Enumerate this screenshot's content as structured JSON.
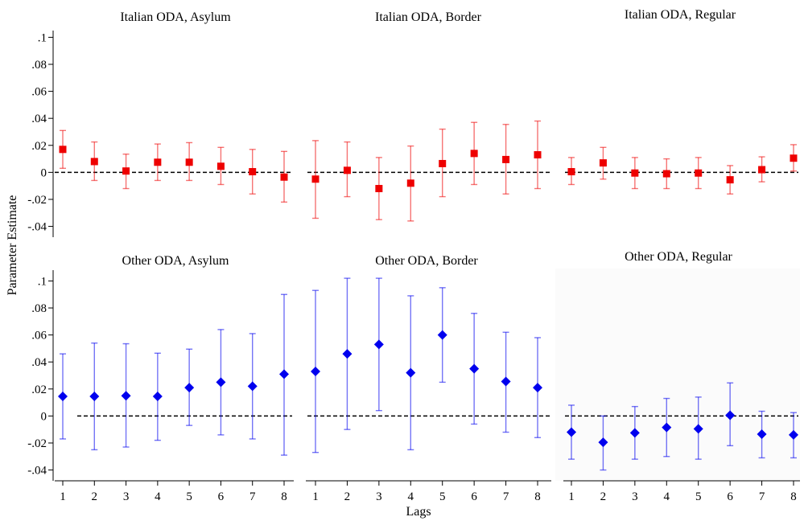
{
  "figure": {
    "ylabel": "Parameter Estimate",
    "xlabel": "Lags"
  },
  "chart_data": [
    {
      "type": "scatter",
      "title": "Italian ODA, Asylum",
      "color": "#ee0000",
      "marker": "square",
      "x": [
        1,
        2,
        3,
        4,
        5,
        6,
        7,
        8
      ],
      "y": [
        0.017,
        0.008,
        0.001,
        0.0075,
        0.0075,
        0.0045,
        0.0005,
        -0.0035
      ],
      "ci_low": [
        0.003,
        -0.006,
        -0.012,
        -0.006,
        -0.006,
        -0.009,
        -0.016,
        -0.022
      ],
      "ci_high": [
        0.031,
        0.0225,
        0.0135,
        0.021,
        0.022,
        0.0185,
        0.017,
        0.0155
      ],
      "ylim": [
        -0.048,
        0.105
      ],
      "yticks": [
        ".1",
        ".08",
        ".06",
        ".04",
        ".02",
        "0",
        "-.02",
        "-.04"
      ],
      "reference_line": 0
    },
    {
      "type": "scatter",
      "title": "Italian ODA, Border",
      "color": "#ee0000",
      "marker": "square",
      "x": [
        1,
        2,
        3,
        4,
        5,
        6,
        7,
        8
      ],
      "y": [
        -0.005,
        0.0015,
        -0.012,
        -0.008,
        0.0065,
        0.014,
        0.0095,
        0.013
      ],
      "ci_low": [
        -0.034,
        -0.018,
        -0.035,
        -0.036,
        -0.018,
        -0.009,
        -0.016,
        -0.012
      ],
      "ci_high": [
        0.0235,
        0.0225,
        0.011,
        0.0195,
        0.032,
        0.037,
        0.0355,
        0.038
      ],
      "ylim": [
        -0.048,
        0.105
      ],
      "reference_line": 0
    },
    {
      "type": "scatter",
      "title": "Italian ODA, Regular",
      "color": "#ee0000",
      "marker": "square",
      "x": [
        1,
        2,
        3,
        4,
        5,
        6,
        7,
        8
      ],
      "y": [
        0.0005,
        0.007,
        -0.0005,
        -0.001,
        -0.0005,
        -0.0055,
        0.002,
        0.0105
      ],
      "ci_low": [
        -0.009,
        -0.005,
        -0.012,
        -0.012,
        -0.012,
        -0.016,
        -0.007,
        0.001
      ],
      "ci_high": [
        0.011,
        0.0185,
        0.011,
        0.01,
        0.011,
        0.005,
        0.0115,
        0.0205
      ],
      "ylim": [
        -0.048,
        0.105
      ],
      "reference_line": 0
    },
    {
      "type": "scatter",
      "title": "Other ODA, Asylum",
      "color": "#0000ee",
      "marker": "diamond",
      "x": [
        1,
        2,
        3,
        4,
        5,
        6,
        7,
        8
      ],
      "y": [
        0.0145,
        0.0145,
        0.015,
        0.0145,
        0.021,
        0.025,
        0.022,
        0.031
      ],
      "ci_low": [
        -0.017,
        -0.025,
        -0.023,
        -0.018,
        -0.007,
        -0.014,
        -0.017,
        -0.029
      ],
      "ci_high": [
        0.046,
        0.054,
        0.0535,
        0.0465,
        0.0495,
        0.064,
        0.061,
        0.09
      ],
      "ylim": [
        -0.048,
        0.108
      ],
      "yticks": [
        ".1",
        ".08",
        ".06",
        ".04",
        ".02",
        "0",
        "-.02",
        "-.04"
      ],
      "xticks": [
        "1",
        "2",
        "3",
        "4",
        "5",
        "6",
        "7",
        "8"
      ],
      "reference_line": 0
    },
    {
      "type": "scatter",
      "title": "Other ODA, Border",
      "color": "#0000ee",
      "marker": "diamond",
      "x": [
        1,
        2,
        3,
        4,
        5,
        6,
        7,
        8
      ],
      "y": [
        0.033,
        0.046,
        0.053,
        0.032,
        0.06,
        0.035,
        0.0255,
        0.021
      ],
      "ci_low": [
        -0.027,
        -0.01,
        0.004,
        -0.025,
        0.025,
        -0.006,
        -0.012,
        -0.016
      ],
      "ci_high": [
        0.093,
        0.102,
        0.102,
        0.089,
        0.095,
        0.076,
        0.062,
        0.058
      ],
      "ylim": [
        -0.048,
        0.108
      ],
      "xticks": [
        "1",
        "2",
        "3",
        "4",
        "5",
        "6",
        "7",
        "8"
      ],
      "reference_line": 0
    },
    {
      "type": "scatter",
      "title": "Other ODA, Regular",
      "color": "#0000ee",
      "marker": "diamond",
      "x": [
        1,
        2,
        3,
        4,
        5,
        6,
        7,
        8
      ],
      "y": [
        -0.012,
        -0.0195,
        -0.0125,
        -0.0085,
        -0.0095,
        0.0005,
        -0.0135,
        -0.014
      ],
      "ci_low": [
        -0.032,
        -0.04,
        -0.032,
        -0.03,
        -0.032,
        -0.022,
        -0.031,
        -0.031
      ],
      "ci_high": [
        0.008,
        0.0,
        0.007,
        0.013,
        0.014,
        0.0245,
        0.0035,
        0.0025
      ],
      "ylim": [
        -0.048,
        0.108
      ],
      "xticks": [
        "1",
        "2",
        "3",
        "4",
        "5",
        "6",
        "7",
        "8"
      ],
      "reference_line": 0
    }
  ]
}
